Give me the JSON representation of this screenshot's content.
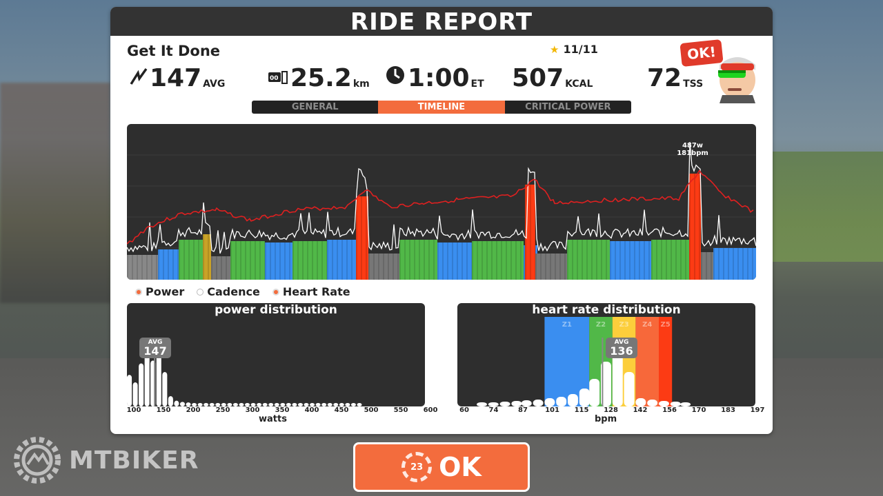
{
  "header": {
    "title": "RIDE REPORT"
  },
  "ride": {
    "name": "Get It Done",
    "stars": "11/11"
  },
  "stats": {
    "power": {
      "value": "147",
      "unit": "AVG"
    },
    "distance": {
      "value": "25.2",
      "unit": "km"
    },
    "time": {
      "value": "1:00",
      "unit": "ET"
    },
    "calories": {
      "value": "507",
      "unit": "KCAL"
    },
    "tss": {
      "value": "72",
      "unit": "TSS"
    }
  },
  "tabs": [
    {
      "label": "GENERAL",
      "active": false
    },
    {
      "label": "TIMELINE",
      "active": true
    },
    {
      "label": "CRITICAL POWER",
      "active": false
    }
  ],
  "avatar": {
    "badge": "OK!"
  },
  "timeline": {
    "peak_power": "487w",
    "peak_hr": "181bpm"
  },
  "legend": [
    {
      "label": "Power",
      "on": true
    },
    {
      "label": "Cadence",
      "on": false
    },
    {
      "label": "Heart Rate",
      "on": true
    }
  ],
  "power_distribution": {
    "title": "power distribution",
    "avg_label": "AVG",
    "avg_value": "147",
    "axis_title": "watts",
    "ticks": [
      "100",
      "150",
      "200",
      "250",
      "300",
      "350",
      "400",
      "450",
      "500",
      "550",
      "600"
    ]
  },
  "hr_distribution": {
    "title": "heart rate distribution",
    "avg_label": "AVG",
    "avg_value": "136",
    "axis_title": "bpm",
    "ticks": [
      "60",
      "74",
      "87",
      "101",
      "115",
      "128",
      "142",
      "156",
      "170",
      "183",
      "197"
    ],
    "zones": [
      "Z1",
      "Z2",
      "Z3",
      "Z4",
      "Z5"
    ]
  },
  "ok_button": {
    "label": "OK",
    "countdown": "23"
  },
  "watermark": {
    "text": "MTBIKER"
  },
  "colors": {
    "accent": "#f36c3d",
    "panel_dark": "#2e2e2e",
    "z1": "#3a8ef0",
    "z2": "#51b848",
    "z3": "#fcce3b",
    "z4": "#f7683a",
    "z5": "#fc3b14",
    "heart_rate_line": "#e02020"
  },
  "chart_data": [
    {
      "type": "bar",
      "title": "power distribution",
      "xlabel": "watts",
      "x": [
        100,
        110,
        120,
        130,
        140,
        150,
        160,
        170,
        180,
        190,
        200,
        210,
        220,
        230,
        240,
        250,
        260,
        270,
        280,
        290,
        300,
        310,
        320,
        330,
        340,
        350,
        360,
        370,
        380,
        390,
        400,
        410,
        420,
        430,
        440,
        450,
        460,
        470,
        480,
        490
      ],
      "values": [
        55,
        42,
        75,
        120,
        80,
        95,
        60,
        18,
        10,
        8,
        7,
        6,
        6,
        6,
        6,
        6,
        6,
        6,
        6,
        6,
        6,
        6,
        6,
        6,
        6,
        6,
        6,
        6,
        6,
        6,
        6,
        6,
        6,
        6,
        6,
        6,
        6,
        6,
        6,
        6
      ],
      "avg": 147
    },
    {
      "type": "bar",
      "title": "heart rate distribution",
      "xlabel": "bpm",
      "x": [
        60,
        67,
        74,
        81,
        87,
        94,
        101,
        108,
        115,
        122,
        128,
        135,
        142,
        149,
        156,
        163,
        170,
        177,
        183
      ],
      "values": [
        6,
        6,
        7,
        8,
        9,
        10,
        12,
        14,
        18,
        26,
        40,
        65,
        80,
        50,
        12,
        10,
        8,
        7,
        6
      ],
      "avg": 136
    }
  ]
}
